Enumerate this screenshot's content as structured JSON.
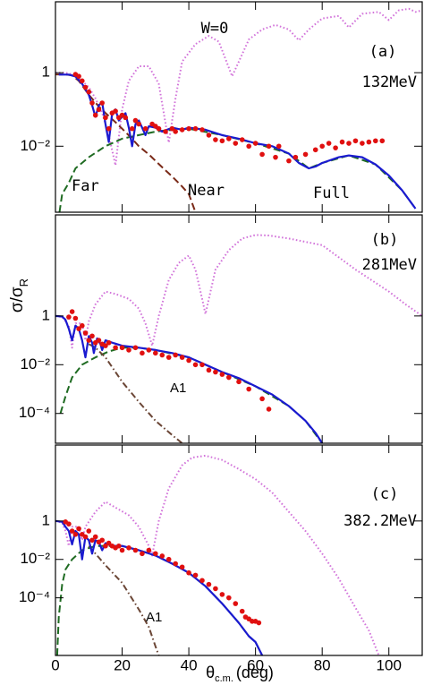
{
  "chart_data": [
    {
      "type": "line",
      "yscale": "log",
      "panel_label": "(a)",
      "energy": "132MeV",
      "xlim": [
        0,
        110
      ],
      "ylim": [
        0.00016,
        85
      ],
      "yticks": [
        1,
        {
          "value": 0.01,
          "label": "10⁻²"
        }
      ],
      "series": [
        {
          "name": "W=0",
          "color": "#d274da",
          "style": "dotted",
          "x": [
            0,
            3,
            5,
            8,
            10,
            12,
            14,
            16,
            18,
            20,
            22,
            25,
            28,
            31,
            34,
            36,
            38,
            42,
            46,
            49,
            53,
            55,
            58,
            62,
            66,
            70,
            73,
            76,
            80,
            85,
            88,
            92,
            97,
            100,
            103,
            106,
            108,
            110
          ],
          "values": [
            1,
            1,
            0.9,
            0.6,
            0.4,
            0.2,
            0.08,
            0.02,
            0.003,
            0.1,
            0.6,
            1.5,
            1.5,
            0.5,
            0.0125,
            0.2,
            2,
            6,
            10,
            7,
            0.8,
            2,
            8,
            15,
            20,
            15,
            7.6,
            15,
            30,
            35,
            17,
            40,
            45,
            27,
            50,
            55,
            45,
            50
          ]
        },
        {
          "name": "Far",
          "color": "#1f6b22",
          "style": "dashed",
          "x": [
            1.2,
            2,
            4,
            6,
            10,
            15,
            20,
            25,
            30,
            35,
            40,
            50,
            60,
            70,
            76,
            80,
            88,
            96,
            104,
            108
          ],
          "values": [
            0.00016,
            0.0005,
            0.001,
            0.0025,
            0.005,
            0.01,
            0.016,
            0.02,
            0.025,
            0.028,
            0.03,
            0.02,
            0.012,
            0.0063,
            0.0025,
            0.0035,
            0.0056,
            0.0032,
            0.00063,
            0.0002
          ]
        },
        {
          "name": "Near",
          "color": "#7a2a18",
          "style": "dashed",
          "x": [
            0,
            3,
            5,
            7,
            10,
            13,
            15,
            18,
            20,
            23,
            25,
            28,
            30,
            33,
            35,
            38,
            40,
            42
          ],
          "values": [
            0.9,
            0.9,
            0.85,
            0.6,
            0.25,
            0.12,
            0.08,
            0.045,
            0.03,
            0.016,
            0.01,
            0.006,
            0.004,
            0.0022,
            0.0015,
            0.0008,
            0.0005,
            0.00016
          ]
        },
        {
          "name": "Full",
          "color": "#1a1ad0",
          "style": "solid",
          "x": [
            1,
            2,
            4,
            6,
            8,
            10,
            11,
            12,
            13,
            14,
            15,
            16,
            17,
            18,
            19,
            20,
            21,
            22,
            23,
            24,
            25,
            26,
            27,
            28,
            30,
            32,
            35,
            38,
            40,
            45,
            50,
            55,
            60,
            65,
            70,
            73,
            76,
            78,
            80,
            85,
            88,
            92,
            96,
            100,
            104,
            108
          ],
          "values": [
            0.89,
            0.89,
            0.89,
            0.79,
            0.5,
            0.25,
            0.13,
            0.063,
            0.13,
            0.16,
            0.04,
            0.013,
            0.079,
            0.1,
            0.05,
            0.063,
            0.079,
            0.032,
            0.01,
            0.04,
            0.05,
            0.032,
            0.02,
            0.035,
            0.032,
            0.025,
            0.032,
            0.028,
            0.032,
            0.028,
            0.02,
            0.016,
            0.012,
            0.01,
            0.0063,
            0.0035,
            0.0025,
            0.0028,
            0.0035,
            0.005,
            0.0056,
            0.005,
            0.0032,
            0.0016,
            0.00063,
            0.0002
          ]
        },
        {
          "color": "#e01010",
          "style": "points",
          "x": [
            6,
            7,
            8,
            9,
            10,
            11,
            12,
            13,
            14,
            15,
            16,
            17,
            18,
            19,
            20,
            21,
            23,
            24,
            25,
            27,
            29,
            30,
            31,
            33,
            35,
            36,
            38,
            40,
            42,
            44,
            46,
            48,
            50,
            52,
            54,
            56,
            58,
            60,
            62,
            64,
            66,
            67,
            70,
            72,
            75,
            78,
            80,
            82,
            84,
            86,
            88,
            90,
            92,
            94,
            96,
            98
          ],
          "values": [
            0.9,
            0.8,
            0.6,
            0.4,
            0.3,
            0.15,
            0.07,
            0.1,
            0.15,
            0.06,
            0.03,
            0.08,
            0.09,
            0.06,
            0.07,
            0.06,
            0.03,
            0.05,
            0.04,
            0.03,
            0.04,
            0.035,
            0.03,
            0.025,
            0.03,
            0.025,
            0.028,
            0.03,
            0.03,
            0.028,
            0.02,
            0.015,
            0.014,
            0.016,
            0.012,
            0.015,
            0.01,
            0.012,
            0.006,
            0.01,
            0.005,
            0.01,
            0.004,
            0.005,
            0.006,
            0.008,
            0.01,
            0.012,
            0.009,
            0.013,
            0.012,
            0.014,
            0.012,
            0.013,
            0.014,
            0.014
          ]
        }
      ]
    },
    {
      "type": "line",
      "yscale": "log",
      "panel_label": "(b)",
      "energy": "281MeV",
      "annotations": [
        "A1"
      ],
      "ylabel": {
        "text": "σ/σ",
        "sub": "R"
      },
      "xlim": [
        0,
        110
      ],
      "ylim": [
        6e-06,
        14000
      ],
      "yticks": [
        1,
        {
          "value": 0.01,
          "label": "10⁻²"
        },
        {
          "value": 0.0001,
          "label": "10⁻⁴"
        }
      ],
      "series": [
        {
          "color": "#d274da",
          "style": "dotted",
          "x": [
            0,
            2,
            4,
            5,
            6,
            8,
            9,
            10,
            12,
            15,
            18,
            22,
            25,
            27,
            29,
            31,
            34,
            37,
            40,
            42,
            44,
            45,
            46,
            48,
            52,
            56,
            60,
            64,
            70,
            80,
            90,
            100,
            105,
            110
          ],
          "values": [
            1,
            0.9,
            0.4,
            0.05,
            0.5,
            0.5,
            0.1,
            0.6,
            3,
            10,
            8,
            5,
            2,
            0.5,
            0.06,
            1,
            30,
            150,
            300,
            80,
            5,
            1.2,
            5,
            80,
            500,
            1500,
            2100,
            2000,
            1500,
            800,
            80,
            10,
            3,
            1
          ]
        },
        {
          "color": "#1f6b22",
          "style": "dashed",
          "x": [
            1.5,
            3,
            5,
            8,
            12,
            16,
            20,
            25,
            30,
            40,
            50,
            60,
            70,
            75,
            80
          ],
          "values": [
            0.0001,
            0.0005,
            0.003,
            0.01,
            0.02,
            0.035,
            0.05,
            0.05,
            0.04,
            0.02,
            0.005,
            0.0013,
            0.0002,
            5e-05,
            6e-06
          ]
        },
        {
          "color": "#6b4636",
          "style": "dashdot",
          "x": [
            10,
            12,
            15,
            20,
            25,
            30,
            35,
            38
          ],
          "values": [
            0.07,
            0.05,
            0.02,
            0.002,
            0.0003,
            5e-05,
            1.3e-05,
            6e-06
          ]
        },
        {
          "color": "#1a1ad0",
          "style": "solid",
          "x": [
            0,
            2,
            3,
            4,
            5,
            6,
            7,
            8,
            9,
            10,
            11,
            11.5,
            12.5,
            13.5,
            14,
            15,
            17,
            20,
            25,
            30,
            35,
            40,
            45,
            50,
            55,
            60,
            65,
            70,
            75,
            78,
            80
          ],
          "values": [
            1,
            0.95,
            0.7,
            0.3,
            0.1,
            0.4,
            0.3,
            0.1,
            0.02,
            0.15,
            0.08,
            0.03,
            0.12,
            0.07,
            0.04,
            0.1,
            0.08,
            0.06,
            0.05,
            0.04,
            0.03,
            0.02,
            0.01,
            0.005,
            0.0028,
            0.0013,
            0.0006,
            0.0002,
            5e-05,
            1.6e-05,
            6e-06
          ]
        },
        {
          "color": "#e01010",
          "style": "points",
          "x": [
            4,
            5,
            6,
            7,
            8,
            9,
            10,
            11,
            12,
            13,
            14,
            15,
            16,
            18,
            20,
            22,
            24,
            26,
            28,
            30,
            32,
            34,
            36,
            38,
            40,
            42,
            44,
            46,
            48,
            50,
            52,
            55,
            58,
            62,
            64
          ],
          "values": [
            0.9,
            1.5,
            0.8,
            0.3,
            0.4,
            0.2,
            0.1,
            0.15,
            0.08,
            0.1,
            0.07,
            0.06,
            0.08,
            0.05,
            0.05,
            0.04,
            0.05,
            0.03,
            0.04,
            0.03,
            0.025,
            0.02,
            0.025,
            0.02,
            0.015,
            0.01,
            0.01,
            0.006,
            0.005,
            0.004,
            0.003,
            0.002,
            0.001,
            0.0004,
            0.00015
          ]
        }
      ]
    },
    {
      "type": "line",
      "yscale": "log",
      "panel_label": "(c)",
      "energy": "382.2MeV",
      "annotations": [
        "A1"
      ],
      "xlabel": {
        "text": "θ",
        "sub": "c.m.",
        "unit": "(deg)"
      },
      "xlim": [
        0,
        110
      ],
      "ylim": [
        1e-07,
        9000
      ],
      "xticks": [
        0,
        20,
        40,
        60,
        80,
        100
      ],
      "yticks": [
        1,
        {
          "value": 0.01,
          "label": "10⁻²"
        },
        {
          "value": 0.0001,
          "label": "10⁻⁴"
        }
      ],
      "series": [
        {
          "color": "#d274da",
          "style": "dotted",
          "x": [
            0,
            2,
            3,
            4,
            5,
            7,
            8,
            9,
            12,
            15,
            18,
            22,
            25,
            28,
            29,
            31,
            34,
            38,
            41,
            45,
            50,
            55,
            60,
            65,
            70,
            75,
            80,
            85,
            90,
            94,
            97
          ],
          "values": [
            1,
            0.8,
            0.3,
            0.05,
            0.5,
            0.5,
            0.1,
            0.5,
            3,
            10,
            5,
            2,
            0.5,
            0.05,
            0.016,
            1,
            50,
            800,
            2000,
            2500,
            1500,
            500,
            150,
            30,
            3,
            0.3,
            0.02,
            0.001,
            3e-05,
            2e-06,
            1e-07
          ]
        },
        {
          "color": "#1f6b22",
          "style": "dashed",
          "x": [
            0.5,
            1,
            2,
            3,
            5,
            8,
            12,
            16,
            20,
            25,
            30,
            35,
            40,
            45,
            50,
            55,
            58,
            60,
            62
          ],
          "values": [
            1e-07,
            1e-05,
            0.0005,
            0.003,
            0.01,
            0.03,
            0.05,
            0.05,
            0.05,
            0.03,
            0.016,
            0.006,
            0.002,
            0.0004,
            5e-05,
            5e-06,
            1e-06,
            5e-07,
            1e-07
          ]
        },
        {
          "color": "#6b4636",
          "style": "dashdot",
          "x": [
            10,
            12,
            15,
            20,
            25,
            28,
            30,
            31
          ],
          "values": [
            0.05,
            0.02,
            0.005,
            0.0006,
            2.5e-05,
            3e-06,
            3e-07,
            1e-07
          ]
        },
        {
          "color": "#1a1ad0",
          "style": "solid",
          "x": [
            0,
            2,
            3,
            4,
            5,
            6,
            7,
            8,
            9,
            10,
            11,
            12,
            13,
            14,
            15,
            17,
            20,
            25,
            30,
            35,
            40,
            45,
            50,
            55,
            58,
            60,
            62
          ],
          "values": [
            1,
            0.9,
            0.5,
            0.3,
            0.06,
            0.3,
            0.2,
            0.01,
            0.15,
            0.1,
            0.02,
            0.1,
            0.08,
            0.03,
            0.07,
            0.05,
            0.05,
            0.03,
            0.016,
            0.006,
            0.002,
            0.0004,
            5e-05,
            5e-06,
            1e-06,
            5e-07,
            1e-07
          ]
        },
        {
          "color": "#e01010",
          "style": "points",
          "x": [
            3,
            4,
            5,
            6,
            7,
            8,
            9,
            10,
            11,
            12,
            13,
            14,
            15,
            16,
            17,
            18,
            19,
            20,
            22,
            24,
            26,
            28,
            30,
            32,
            34,
            36,
            38,
            40,
            42,
            44,
            46,
            48,
            50,
            52,
            54,
            56,
            57,
            58,
            59,
            60,
            61
          ],
          "values": [
            0.9,
            0.7,
            0.3,
            0.2,
            0.4,
            0.2,
            0.15,
            0.3,
            0.1,
            0.15,
            0.08,
            0.1,
            0.05,
            0.07,
            0.05,
            0.04,
            0.05,
            0.03,
            0.04,
            0.03,
            0.02,
            0.03,
            0.02,
            0.015,
            0.01,
            0.006,
            0.004,
            0.002,
            0.0015,
            0.0008,
            0.0005,
            0.0003,
            0.00015,
            0.0001,
            5e-05,
            2e-05,
            1e-05,
            8e-06,
            6e-06,
            6e-06,
            5e-06
          ]
        }
      ]
    }
  ]
}
